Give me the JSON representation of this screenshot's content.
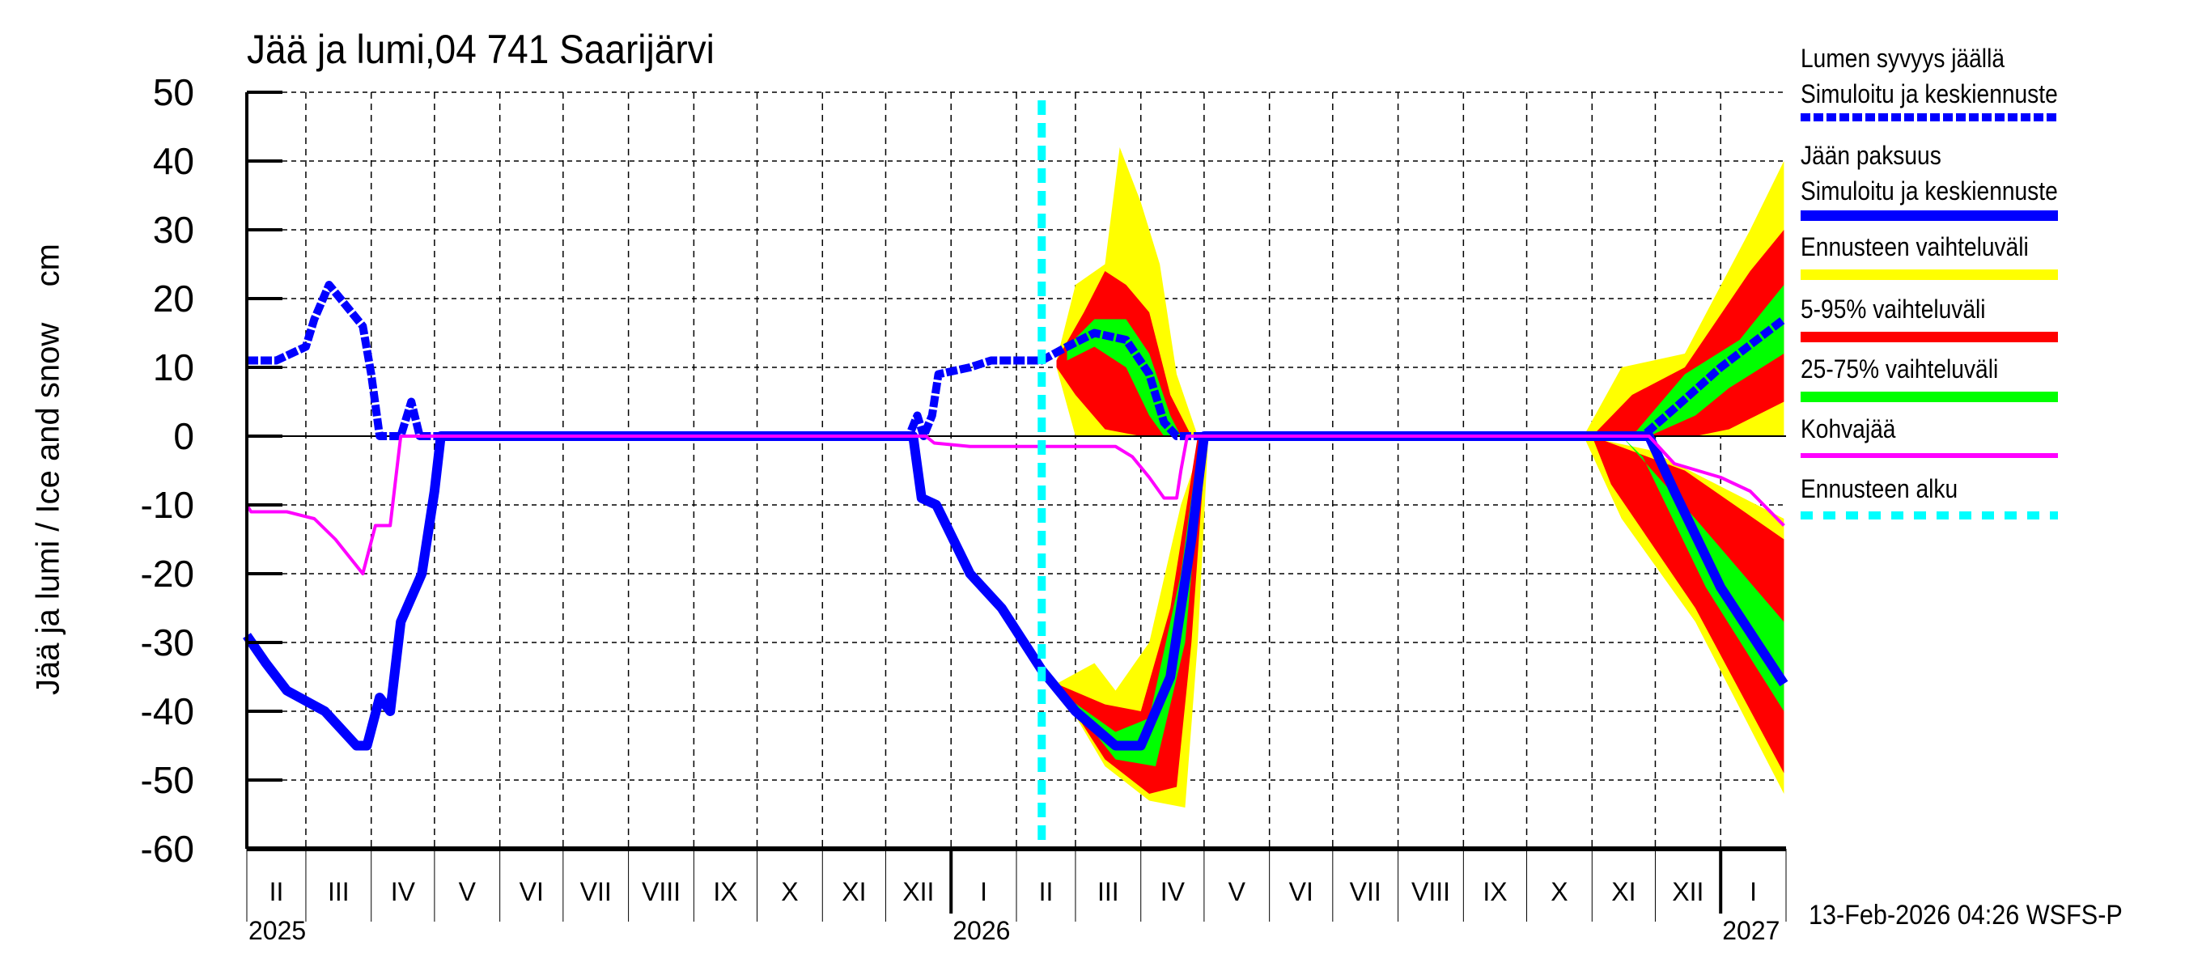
{
  "chart_data": {
    "type": "area",
    "title": "Jää ja lumi,04 741 Saarijärvi",
    "xlabel": "",
    "ylabel": "Jää ja lumi / Ice and snow    cm",
    "ylim": [
      -60,
      50
    ],
    "yticks": [
      50,
      40,
      30,
      20,
      10,
      0,
      -10,
      -20,
      -30,
      -40,
      -50,
      -60
    ],
    "grid": true,
    "legend_position": "right",
    "x_month_labels": [
      "II",
      "III",
      "IV",
      "V",
      "VI",
      "VII",
      "VIII",
      "IX",
      "X",
      "XI",
      "XII",
      "I",
      "II",
      "III",
      "IV",
      "V",
      "VI",
      "VII",
      "VIII",
      "IX",
      "X",
      "XI",
      "XII",
      "I"
    ],
    "x_year_labels": [
      "2025",
      "2026",
      "2027"
    ],
    "x_range": [
      "2025-02-01",
      "2027-01-31"
    ],
    "forecast_start": "2026-02-13",
    "series": [
      {
        "name": "Lumen syvyys jäällä — Simuloitu ja keskiennuste",
        "style": "dashed-thick",
        "color": "#0000ff",
        "points": [
          [
            "2025-02-01",
            11
          ],
          [
            "2025-02-15",
            11
          ],
          [
            "2025-03-01",
            13
          ],
          [
            "2025-03-05",
            17
          ],
          [
            "2025-03-12",
            22
          ],
          [
            "2025-03-20",
            19
          ],
          [
            "2025-03-28",
            16
          ],
          [
            "2025-04-01",
            9
          ],
          [
            "2025-04-05",
            0
          ],
          [
            "2025-04-15",
            0
          ],
          [
            "2025-04-20",
            5
          ],
          [
            "2025-04-24",
            0
          ],
          [
            "2025-05-10",
            0
          ],
          [
            "2025-12-12",
            0
          ],
          [
            "2025-12-16",
            3
          ],
          [
            "2025-12-19",
            0
          ],
          [
            "2025-12-23",
            3
          ],
          [
            "2025-12-26",
            9
          ],
          [
            "2026-01-10",
            10
          ],
          [
            "2026-01-20",
            11
          ],
          [
            "2026-02-13",
            11
          ],
          [
            "2026-02-25",
            13
          ],
          [
            "2026-03-10",
            15
          ],
          [
            "2026-03-25",
            14
          ],
          [
            "2026-04-05",
            9
          ],
          [
            "2026-04-12",
            2
          ],
          [
            "2026-04-18",
            0
          ],
          [
            "2026-11-25",
            0
          ],
          [
            "2026-12-10",
            4
          ],
          [
            "2027-01-01",
            10
          ],
          [
            "2027-01-31",
            17
          ]
        ]
      },
      {
        "name": "Jään paksuus — Simuloitu ja keskiennuste",
        "style": "solid-thick",
        "color": "#0000ff",
        "points": [
          [
            "2025-02-01",
            -29
          ],
          [
            "2025-02-10",
            -33
          ],
          [
            "2025-02-20",
            -37
          ],
          [
            "2025-03-10",
            -40
          ],
          [
            "2025-03-25",
            -45
          ],
          [
            "2025-03-30",
            -45
          ],
          [
            "2025-04-05",
            -38
          ],
          [
            "2025-04-10",
            -40
          ],
          [
            "2025-04-15",
            -27
          ],
          [
            "2025-04-25",
            -20
          ],
          [
            "2025-05-01",
            -8
          ],
          [
            "2025-05-04",
            0
          ],
          [
            "2025-12-14",
            0
          ],
          [
            "2025-12-18",
            -9
          ],
          [
            "2025-12-25",
            -10
          ],
          [
            "2026-01-10",
            -20
          ],
          [
            "2026-01-25",
            -25
          ],
          [
            "2026-02-13",
            -34
          ],
          [
            "2026-03-01",
            -40
          ],
          [
            "2026-03-20",
            -45
          ],
          [
            "2026-04-01",
            -45
          ],
          [
            "2026-04-15",
            -35
          ],
          [
            "2026-04-25",
            -15
          ],
          [
            "2026-05-01",
            0
          ],
          [
            "2026-11-28",
            0
          ],
          [
            "2026-12-10",
            -8
          ],
          [
            "2027-01-01",
            -22
          ],
          [
            "2027-01-31",
            -36
          ]
        ]
      },
      {
        "name": "Kohvajää",
        "style": "solid-thin",
        "color": "#ff00ff",
        "points": [
          [
            "2025-02-01",
            -10
          ],
          [
            "2025-02-03",
            -11
          ],
          [
            "2025-02-20",
            -11
          ],
          [
            "2025-03-05",
            -12
          ],
          [
            "2025-03-15",
            -15
          ],
          [
            "2025-03-28",
            -20
          ],
          [
            "2025-04-03",
            -13
          ],
          [
            "2025-04-10",
            -13
          ],
          [
            "2025-04-15",
            0
          ],
          [
            "2025-12-20",
            0
          ],
          [
            "2025-12-24",
            -1
          ],
          [
            "2026-01-10",
            -1.5
          ],
          [
            "2026-02-13",
            -1.5
          ],
          [
            "2026-03-20",
            -1.5
          ],
          [
            "2026-03-28",
            -3
          ],
          [
            "2026-04-05",
            -6
          ],
          [
            "2026-04-12",
            -9
          ],
          [
            "2026-04-18",
            -9
          ],
          [
            "2026-04-20",
            -5
          ],
          [
            "2026-04-23",
            0
          ],
          [
            "2026-11-28",
            0
          ],
          [
            "2026-12-10",
            -4
          ],
          [
            "2027-01-01",
            -6
          ],
          [
            "2027-01-15",
            -8
          ],
          [
            "2027-01-31",
            -13
          ]
        ]
      },
      {
        "name": "Ennusteen vaihteluväli (snow, upper/lower)",
        "type": "band",
        "color": "#ffff00",
        "upper": [
          [
            "2026-02-20",
            11
          ],
          [
            "2026-03-01",
            22
          ],
          [
            "2026-03-15",
            25
          ],
          [
            "2026-03-22",
            42
          ],
          [
            "2026-04-01",
            34
          ],
          [
            "2026-04-10",
            25
          ],
          [
            "2026-04-18",
            9
          ],
          [
            "2026-04-28",
            0
          ]
        ],
        "lower": [
          [
            "2026-02-20",
            10
          ],
          [
            "2026-03-01",
            0
          ],
          [
            "2026-04-28",
            0
          ]
        ]
      },
      {
        "name": "5-95% vaihteluväli (snow)",
        "type": "band",
        "color": "#ff0000",
        "upper": [
          [
            "2026-02-20",
            11
          ],
          [
            "2026-03-05",
            18
          ],
          [
            "2026-03-15",
            24
          ],
          [
            "2026-03-25",
            22
          ],
          [
            "2026-04-05",
            18
          ],
          [
            "2026-04-15",
            6
          ],
          [
            "2026-04-25",
            0
          ]
        ],
        "lower": [
          [
            "2026-02-20",
            10
          ],
          [
            "2026-03-01",
            6
          ],
          [
            "2026-03-15",
            1
          ],
          [
            "2026-04-01",
            0
          ],
          [
            "2026-04-25",
            0
          ]
        ]
      },
      {
        "name": "25-75% vaihteluväli (snow)",
        "type": "band",
        "color": "#00ff00",
        "upper": [
          [
            "2026-02-25",
            13
          ],
          [
            "2026-03-10",
            17
          ],
          [
            "2026-03-25",
            17
          ],
          [
            "2026-04-05",
            12
          ],
          [
            "2026-04-15",
            3
          ],
          [
            "2026-04-20",
            0
          ]
        ],
        "lower": [
          [
            "2026-02-25",
            11
          ],
          [
            "2026-03-10",
            13
          ],
          [
            "2026-03-25",
            10
          ],
          [
            "2026-04-05",
            3
          ],
          [
            "2026-04-12",
            0
          ]
        ]
      }
    ]
  },
  "chart": {
    "title": "Jää ja lumi,04 741 Saarijärvi",
    "ylabel": "Jää ja lumi / Ice and snow    cm",
    "timestamp": "13-Feb-2026 04:26 WSFS-P",
    "yticks": [
      "50",
      "40",
      "30",
      "20",
      "10",
      "0",
      "-10",
      "-20",
      "-30",
      "-40",
      "-50",
      "-60"
    ],
    "months": [
      "II",
      "III",
      "IV",
      "V",
      "VI",
      "VII",
      "VIII",
      "IX",
      "X",
      "XI",
      "XII",
      "I",
      "II",
      "III",
      "IV",
      "V",
      "VI",
      "VII",
      "VIII",
      "IX",
      "X",
      "XI",
      "XII",
      "I"
    ],
    "years": [
      "2025",
      "2026",
      "2027"
    ]
  },
  "legend": {
    "items": [
      {
        "line1": "Lumen syvyys jäällä",
        "line2": "Simuloitu ja keskiennuste",
        "color": "#0000ff",
        "style": "dashed"
      },
      {
        "line1": "Jään paksuus",
        "line2": "Simuloitu ja keskiennuste",
        "color": "#0000ff",
        "style": "solid"
      },
      {
        "line1": "Ennusteen vaihteluväli",
        "color": "#ffff00",
        "style": "solid"
      },
      {
        "line1": "5-95% vaihteluväli",
        "color": "#ff0000",
        "style": "solid"
      },
      {
        "line1": "25-75% vaihteluväli",
        "color": "#00ff00",
        "style": "solid"
      },
      {
        "line1": "Kohvajää",
        "color": "#ff00ff",
        "style": "thin"
      },
      {
        "line1": "Ennusteen alku",
        "color": "#00ffff",
        "style": "dotted"
      }
    ]
  }
}
